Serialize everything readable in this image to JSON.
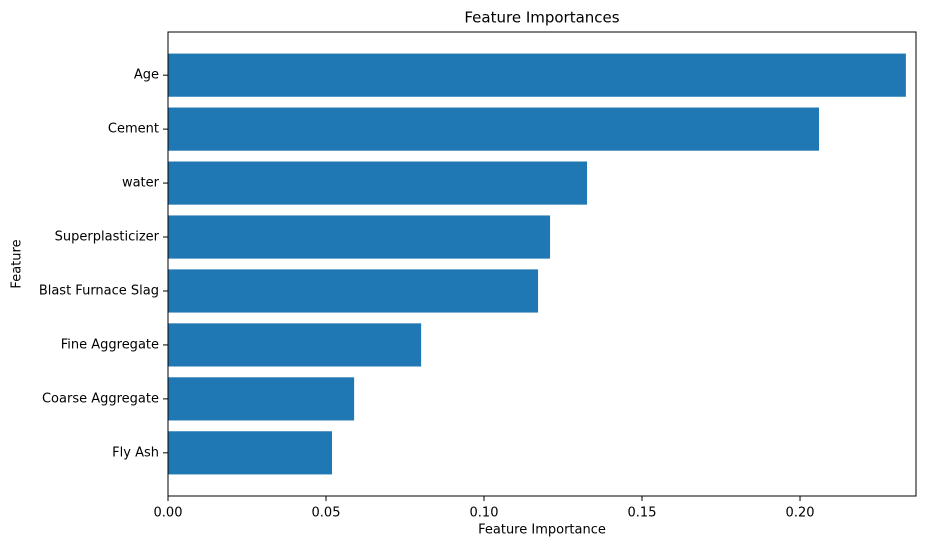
{
  "chart_data": {
    "type": "barh",
    "title": "Feature Importances",
    "xlabel": "Feature Importance",
    "ylabel": "Feature",
    "categories": [
      "Age",
      "Cement",
      "water",
      "Superplasticizer",
      "Blast Furnace Slag",
      "Fine Aggregate",
      "Coarse Aggregate",
      "Fly Ash"
    ],
    "values": [
      0.2335,
      0.206,
      0.1326,
      0.1209,
      0.1171,
      0.0801,
      0.0589,
      0.0519
    ],
    "color": "#1f77b4",
    "xlim": [
      0,
      0.2367
    ],
    "xticks": [
      {
        "value": 0,
        "label": "0.00"
      },
      {
        "value": 0.05,
        "label": "0.05"
      },
      {
        "value": 0.1,
        "label": "0.10"
      },
      {
        "value": 0.15,
        "label": "0.15"
      },
      {
        "value": 0.2,
        "label": "0.20"
      }
    ]
  }
}
